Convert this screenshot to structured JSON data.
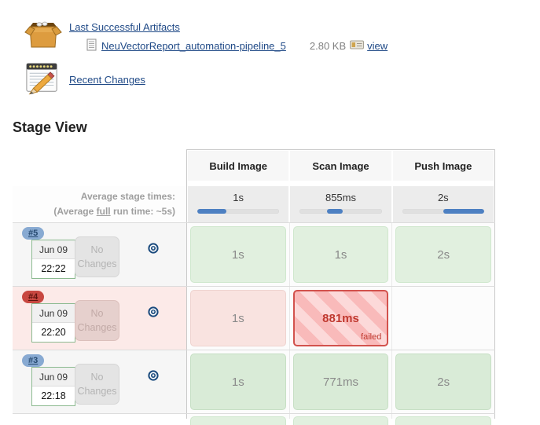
{
  "artifacts": {
    "title": "Last Successful Artifacts",
    "file_name": "NeuVectorReport_automation-pipeline_5",
    "file_size": "2.80 KB",
    "view_label": "view"
  },
  "recent_changes": {
    "label": "Recent Changes"
  },
  "stage_view": {
    "title": "Stage View",
    "columns": [
      "Build Image",
      "Scan Image",
      "Push Image"
    ],
    "average": {
      "label_line1": "Average stage times:",
      "label_line2_prefix": "(Average ",
      "label_line2_underlined": "full",
      "label_line2_suffix": " run time: ~5s)",
      "stage_times": [
        "1s",
        "855ms",
        "2s"
      ],
      "bars": [
        {
          "start_pct": 0,
          "width_pct": 35
        },
        {
          "start_pct": 33,
          "width_pct": 19
        },
        {
          "start_pct": 50,
          "width_pct": 50
        }
      ]
    },
    "runs": [
      {
        "id": "#5",
        "status": "success",
        "date": "Jun 09",
        "time": "22:22",
        "changes_label": "No Changes",
        "cells": [
          {
            "text": "1s",
            "state": "success"
          },
          {
            "text": "1s",
            "state": "success"
          },
          {
            "text": "2s",
            "state": "success"
          }
        ]
      },
      {
        "id": "#4",
        "status": "failed",
        "date": "Jun 09",
        "time": "22:20",
        "changes_label": "No Changes",
        "cells": [
          {
            "text": "1s",
            "state": "failed-soft"
          },
          {
            "text": "881ms",
            "state": "failed",
            "label": "failed"
          },
          {
            "text": "",
            "state": "empty"
          }
        ]
      },
      {
        "id": "#3",
        "status": "success",
        "date": "Jun 09",
        "time": "22:18",
        "changes_label": "No Changes",
        "cells": [
          {
            "text": "1s",
            "state": "success-dark"
          },
          {
            "text": "771ms",
            "state": "success-dark"
          },
          {
            "text": "2s",
            "state": "success-dark"
          }
        ]
      }
    ]
  },
  "colors": {
    "link": "#204a87",
    "success_cell": "#e1f0df",
    "failed_stripe": "#f9baba",
    "failed_border": "#d2524d",
    "failed_text": "#c0392f",
    "badge_blue": "#88aad2",
    "badge_red": "#c84740",
    "bar_blue": "#4d80c2",
    "datebox_border": "#8cba90"
  }
}
